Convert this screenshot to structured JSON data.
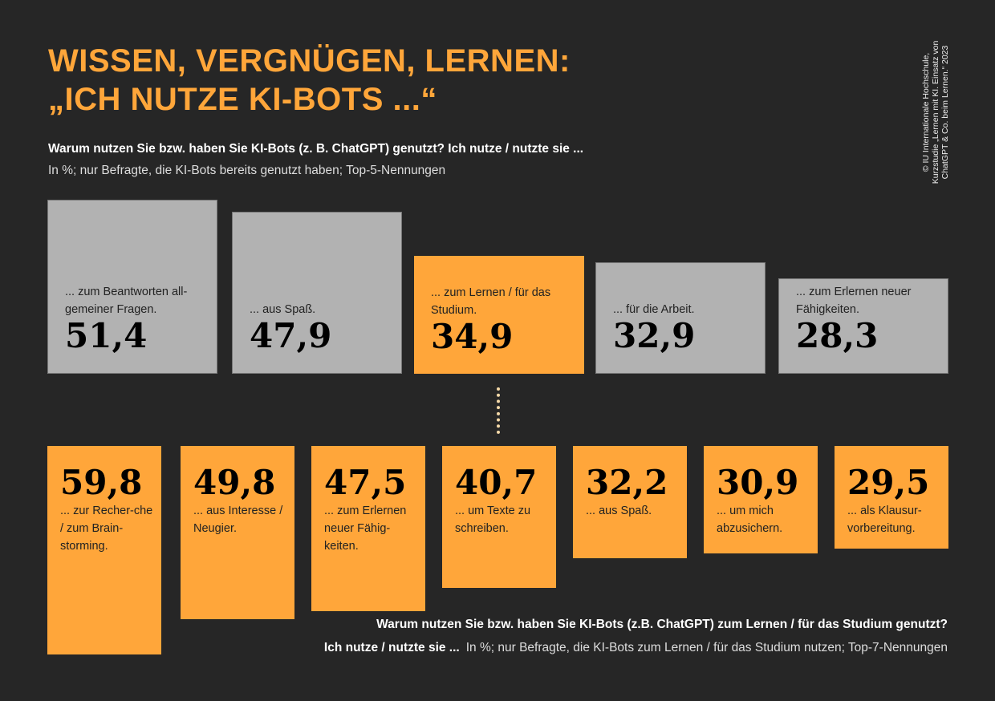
{
  "title_line1": "WISSEN, VERGNÜGEN, LERNEN:",
  "title_line2": "„ICH NUTZE KI-BOTS ...“",
  "question": "Warum nutzen Sie bzw. haben Sie KI-Bots (z. B. ChatGPT) genutzt? Ich nutze / nutzte sie ...",
  "subtitle": "In %; nur Befragte, die KI-Bots bereits genutzt haben; Top-5-Nennungen",
  "credit": "© IU Internationale Hochschule, Kurzstudie „Lernen mit KI. Einsatz von ChatGPT & Co. beim Lernen.“ 2023",
  "colors": {
    "background": "#262626",
    "accent": "#ffa63a",
    "grey": "#b2b2b2"
  },
  "bottom_caption": {
    "line1": "Warum nutzen Sie bzw. haben Sie KI-Bots (z.B. ChatGPT) zum Lernen / für das Studium genutzt?",
    "line2_bold": "Ich nutze / nutzte sie ...",
    "line2_regular": "In %; nur Befragte, die KI-Bots zum Lernen / für das Studium nutzen; Top-7-Nennungen"
  },
  "chart_data": [
    {
      "type": "bar",
      "categories": [
        "... zum Beantworten allgemeiner Fragen.",
        "... aus Spaß.",
        "... zum Lernen / für das Studium.",
        "... für die Arbeit.",
        "... zum Erlernen neuer Fähigkeiten."
      ],
      "labels": [
        "... zum Beantworten all-gemeiner Fragen.",
        "... aus Spaß.",
        "... zum Lernen / für das Studium.",
        "... für die Arbeit.",
        "... zum Erlernen neuer Fähigkeiten."
      ],
      "values": [
        51.4,
        47.9,
        34.9,
        32.9,
        28.3
      ],
      "display": [
        "51,4",
        "47,9",
        "34,9",
        "32,9",
        "28,3"
      ],
      "highlight": [
        false,
        false,
        true,
        false,
        false
      ],
      "unit": "%"
    },
    {
      "type": "bar",
      "categories": [
        "... zur Recherche / zum Brainstorming.",
        "... aus Interesse / Neugier.",
        "... zum Erlernen neuer Fähigkeiten.",
        "... um Texte zu schreiben.",
        "... aus Spaß.",
        "... um mich abzusichern.",
        "... als Klausurvorbereitung."
      ],
      "labels": [
        "... zur Recher-che / zum Brain-storming.",
        "... aus Interesse / Neugier.",
        "... zum Erlernen neuer Fähig-keiten.",
        "... um Texte zu schreiben.",
        "... aus Spaß.",
        "... um mich abzusichern.",
        "... als Klausur-vorbereitung."
      ],
      "values": [
        59.8,
        49.8,
        47.5,
        40.7,
        32.2,
        30.9,
        29.5
      ],
      "display": [
        "59,8",
        "49,8",
        "47,5",
        "40,7",
        "32,2",
        "30,9",
        "29,5"
      ],
      "unit": "%"
    }
  ]
}
